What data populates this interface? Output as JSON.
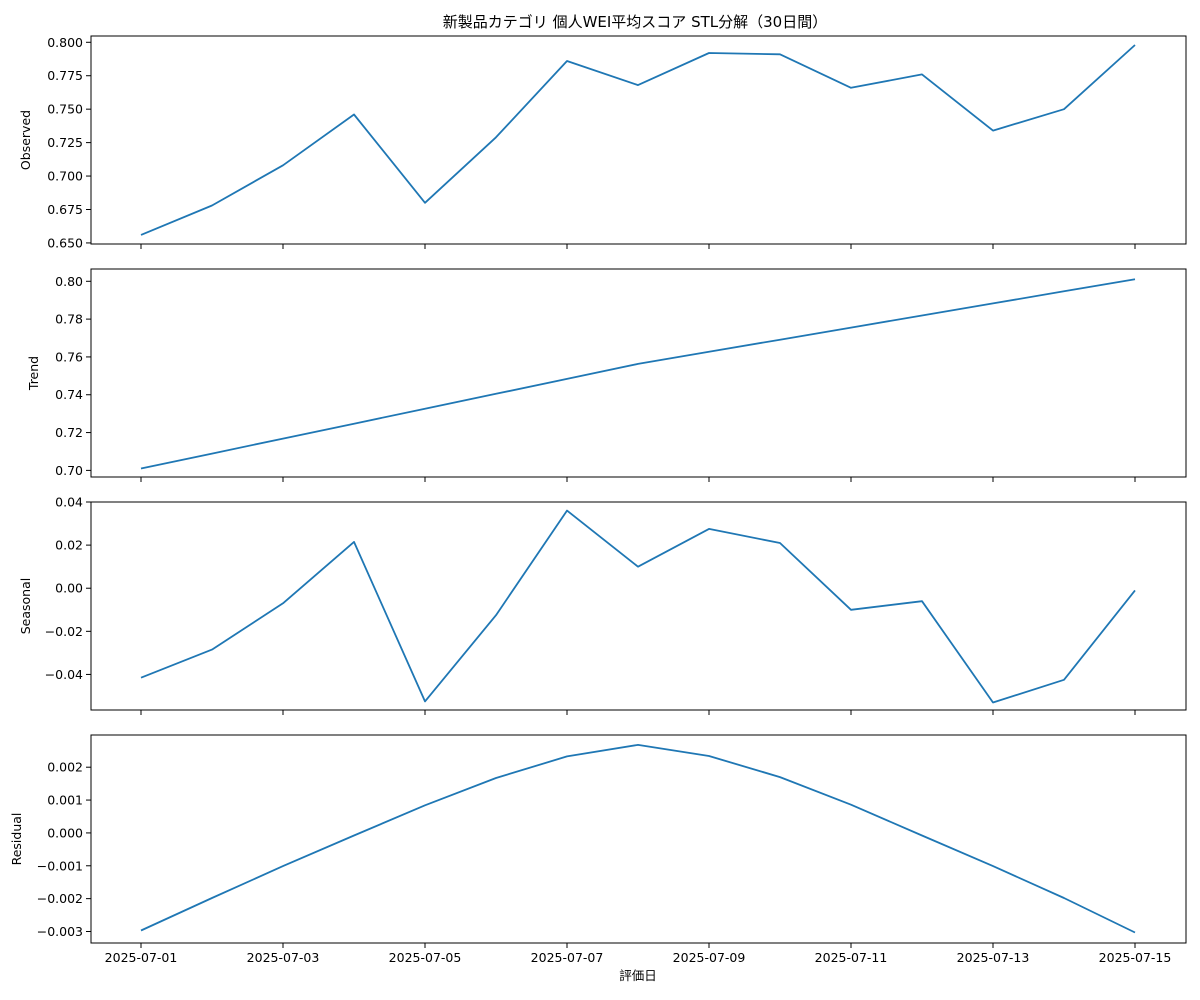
{
  "chart_data": {
    "type": "line",
    "title": "新製品カテゴリ 個人WEI平均スコア STL分解（30日間）",
    "xlabel": "評価日",
    "x": [
      "2025-07-01",
      "2025-07-02",
      "2025-07-03",
      "2025-07-04",
      "2025-07-05",
      "2025-07-06",
      "2025-07-07",
      "2025-07-08",
      "2025-07-09",
      "2025-07-10",
      "2025-07-11",
      "2025-07-12",
      "2025-07-13",
      "2025-07-14",
      "2025-07-15"
    ],
    "x_tick_labels": [
      "2025-07-01",
      "2025-07-03",
      "2025-07-05",
      "2025-07-07",
      "2025-07-09",
      "2025-07-11",
      "2025-07-13",
      "2025-07-15"
    ],
    "grid": false,
    "color": "#1f77b4",
    "panels": [
      {
        "ylabel": "Observed",
        "ylim": [
          0.65,
          0.8
        ],
        "yticks": [
          "0.650",
          "0.675",
          "0.700",
          "0.725",
          "0.750",
          "0.775",
          "0.800"
        ],
        "values": [
          0.656,
          0.678,
          0.708,
          0.746,
          0.68,
          0.729,
          0.786,
          0.768,
          0.792,
          0.791,
          0.766,
          0.776,
          0.734,
          0.75,
          0.798
        ]
      },
      {
        "ylabel": "Trend",
        "ylim": [
          0.7,
          0.8
        ],
        "yticks": [
          "0.70",
          "0.72",
          "0.74",
          "0.76",
          "0.78",
          "0.80"
        ],
        "values": [
          0.701,
          0.7089,
          0.7168,
          0.7247,
          0.7326,
          0.7405,
          0.7484,
          0.7563,
          0.7627,
          0.7691,
          0.7755,
          0.7819,
          0.7883,
          0.7947,
          0.8011
        ]
      },
      {
        "ylabel": "Seasonal",
        "ylim": [
          -0.04,
          0.04
        ],
        "yticks": [
          "−0.04",
          "−0.02",
          "0.00",
          "0.02",
          "0.04"
        ],
        "values": [
          -0.0415,
          -0.0285,
          -0.007,
          0.0215,
          -0.0525,
          -0.0125,
          0.036,
          0.01,
          0.0275,
          0.021,
          -0.01,
          -0.006,
          -0.053,
          -0.0425,
          -0.001
        ]
      },
      {
        "ylabel": "Residual",
        "ylim": [
          -0.003,
          0.002
        ],
        "yticks": [
          "−0.003",
          "−0.002",
          "−0.001",
          "0.000",
          "0.001",
          "0.002"
        ],
        "values": [
          -0.00297,
          -0.00198,
          -0.00101,
          -8e-05,
          0.00084,
          0.00167,
          0.00233,
          0.00268,
          0.00234,
          0.0017,
          0.00086,
          -8e-05,
          -0.00101,
          -0.00198,
          -0.00303
        ]
      }
    ]
  }
}
